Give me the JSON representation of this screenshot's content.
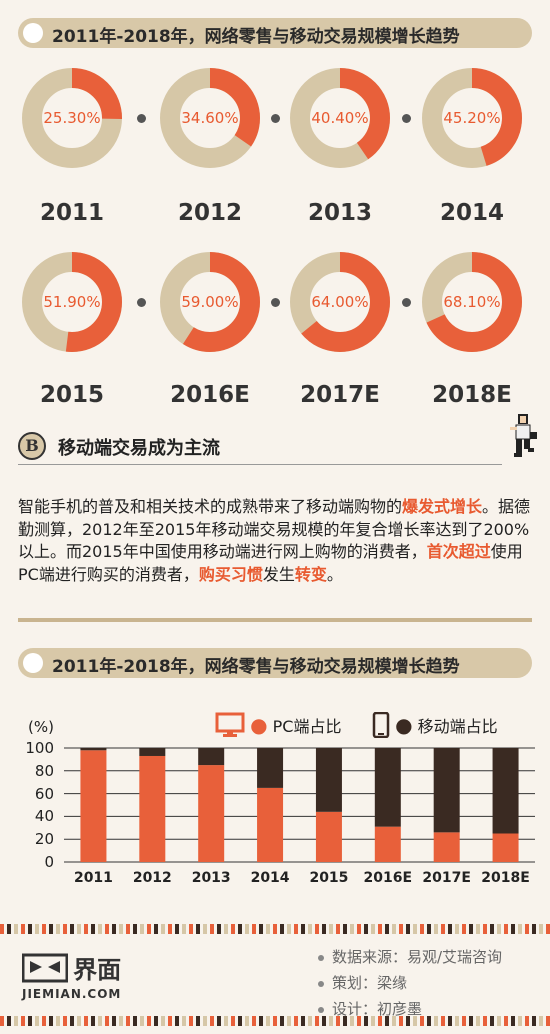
{
  "banner_title": "2011年-2018年，网络零售与移动交易规模增长趋势",
  "colors": {
    "orange": "#e8603a",
    "beige": "#d6c7a7",
    "dark": "#3a2a22"
  },
  "donuts": [
    {
      "year": "2011",
      "pct": 25.3,
      "label": "25.30%"
    },
    {
      "year": "2012",
      "pct": 34.6,
      "label": "34.60%"
    },
    {
      "year": "2013",
      "pct": 40.4,
      "label": "40.40%"
    },
    {
      "year": "2014",
      "pct": 45.2,
      "label": "45.20%"
    },
    {
      "year": "2015",
      "pct": 51.9,
      "label": "51.90%"
    },
    {
      "year": "2016E",
      "pct": 59.0,
      "label": "59.00%"
    },
    {
      "year": "2017E",
      "pct": 64.0,
      "label": "64.00%"
    },
    {
      "year": "2018E",
      "pct": 68.1,
      "label": "68.10%"
    }
  ],
  "section_b": {
    "letter": "B",
    "title": "移动端交易成为主流"
  },
  "paragraph": [
    {
      "t": "智能手机的普及和相关技术的成熟带来了移动端购物的",
      "h": false
    },
    {
      "t": "爆发式增长",
      "h": true
    },
    {
      "t": "。据德勤测算，2012年至2015年移动端交易规模的年复合增长率达到了200%以上。而2015年中国使用移动端进行网上购物的消费者，",
      "h": false
    },
    {
      "t": "首次超过",
      "h": true
    },
    {
      "t": "使用PC端进行购买的消费者，",
      "h": false
    },
    {
      "t": "购买习惯",
      "h": true
    },
    {
      "t": "发生",
      "h": false
    },
    {
      "t": "转变",
      "h": true
    },
    {
      "t": "。",
      "h": false
    }
  ],
  "chart_data": {
    "type": "bar",
    "stacked": true,
    "ylabel": "(%)",
    "ylim": [
      0,
      100
    ],
    "yticks": [
      0,
      20,
      40,
      60,
      80,
      100
    ],
    "categories": [
      "2011",
      "2012",
      "2013",
      "2014",
      "2015",
      "2016E",
      "2017E",
      "2018E"
    ],
    "series": [
      {
        "name": "PC端占比",
        "values": [
          98,
          93,
          85,
          65,
          44,
          31,
          26,
          25
        ]
      },
      {
        "name": "移动端占比",
        "values": [
          2,
          7,
          15,
          35,
          56,
          69,
          74,
          75
        ]
      }
    ],
    "legend": "top-right"
  },
  "footer": {
    "logo_cn": "界面",
    "logo_en": "JIEMIAN.COM",
    "credits": [
      "数据来源：易观/艾瑞咨询",
      "策划：梁缘",
      "设计：初彦墨"
    ]
  }
}
